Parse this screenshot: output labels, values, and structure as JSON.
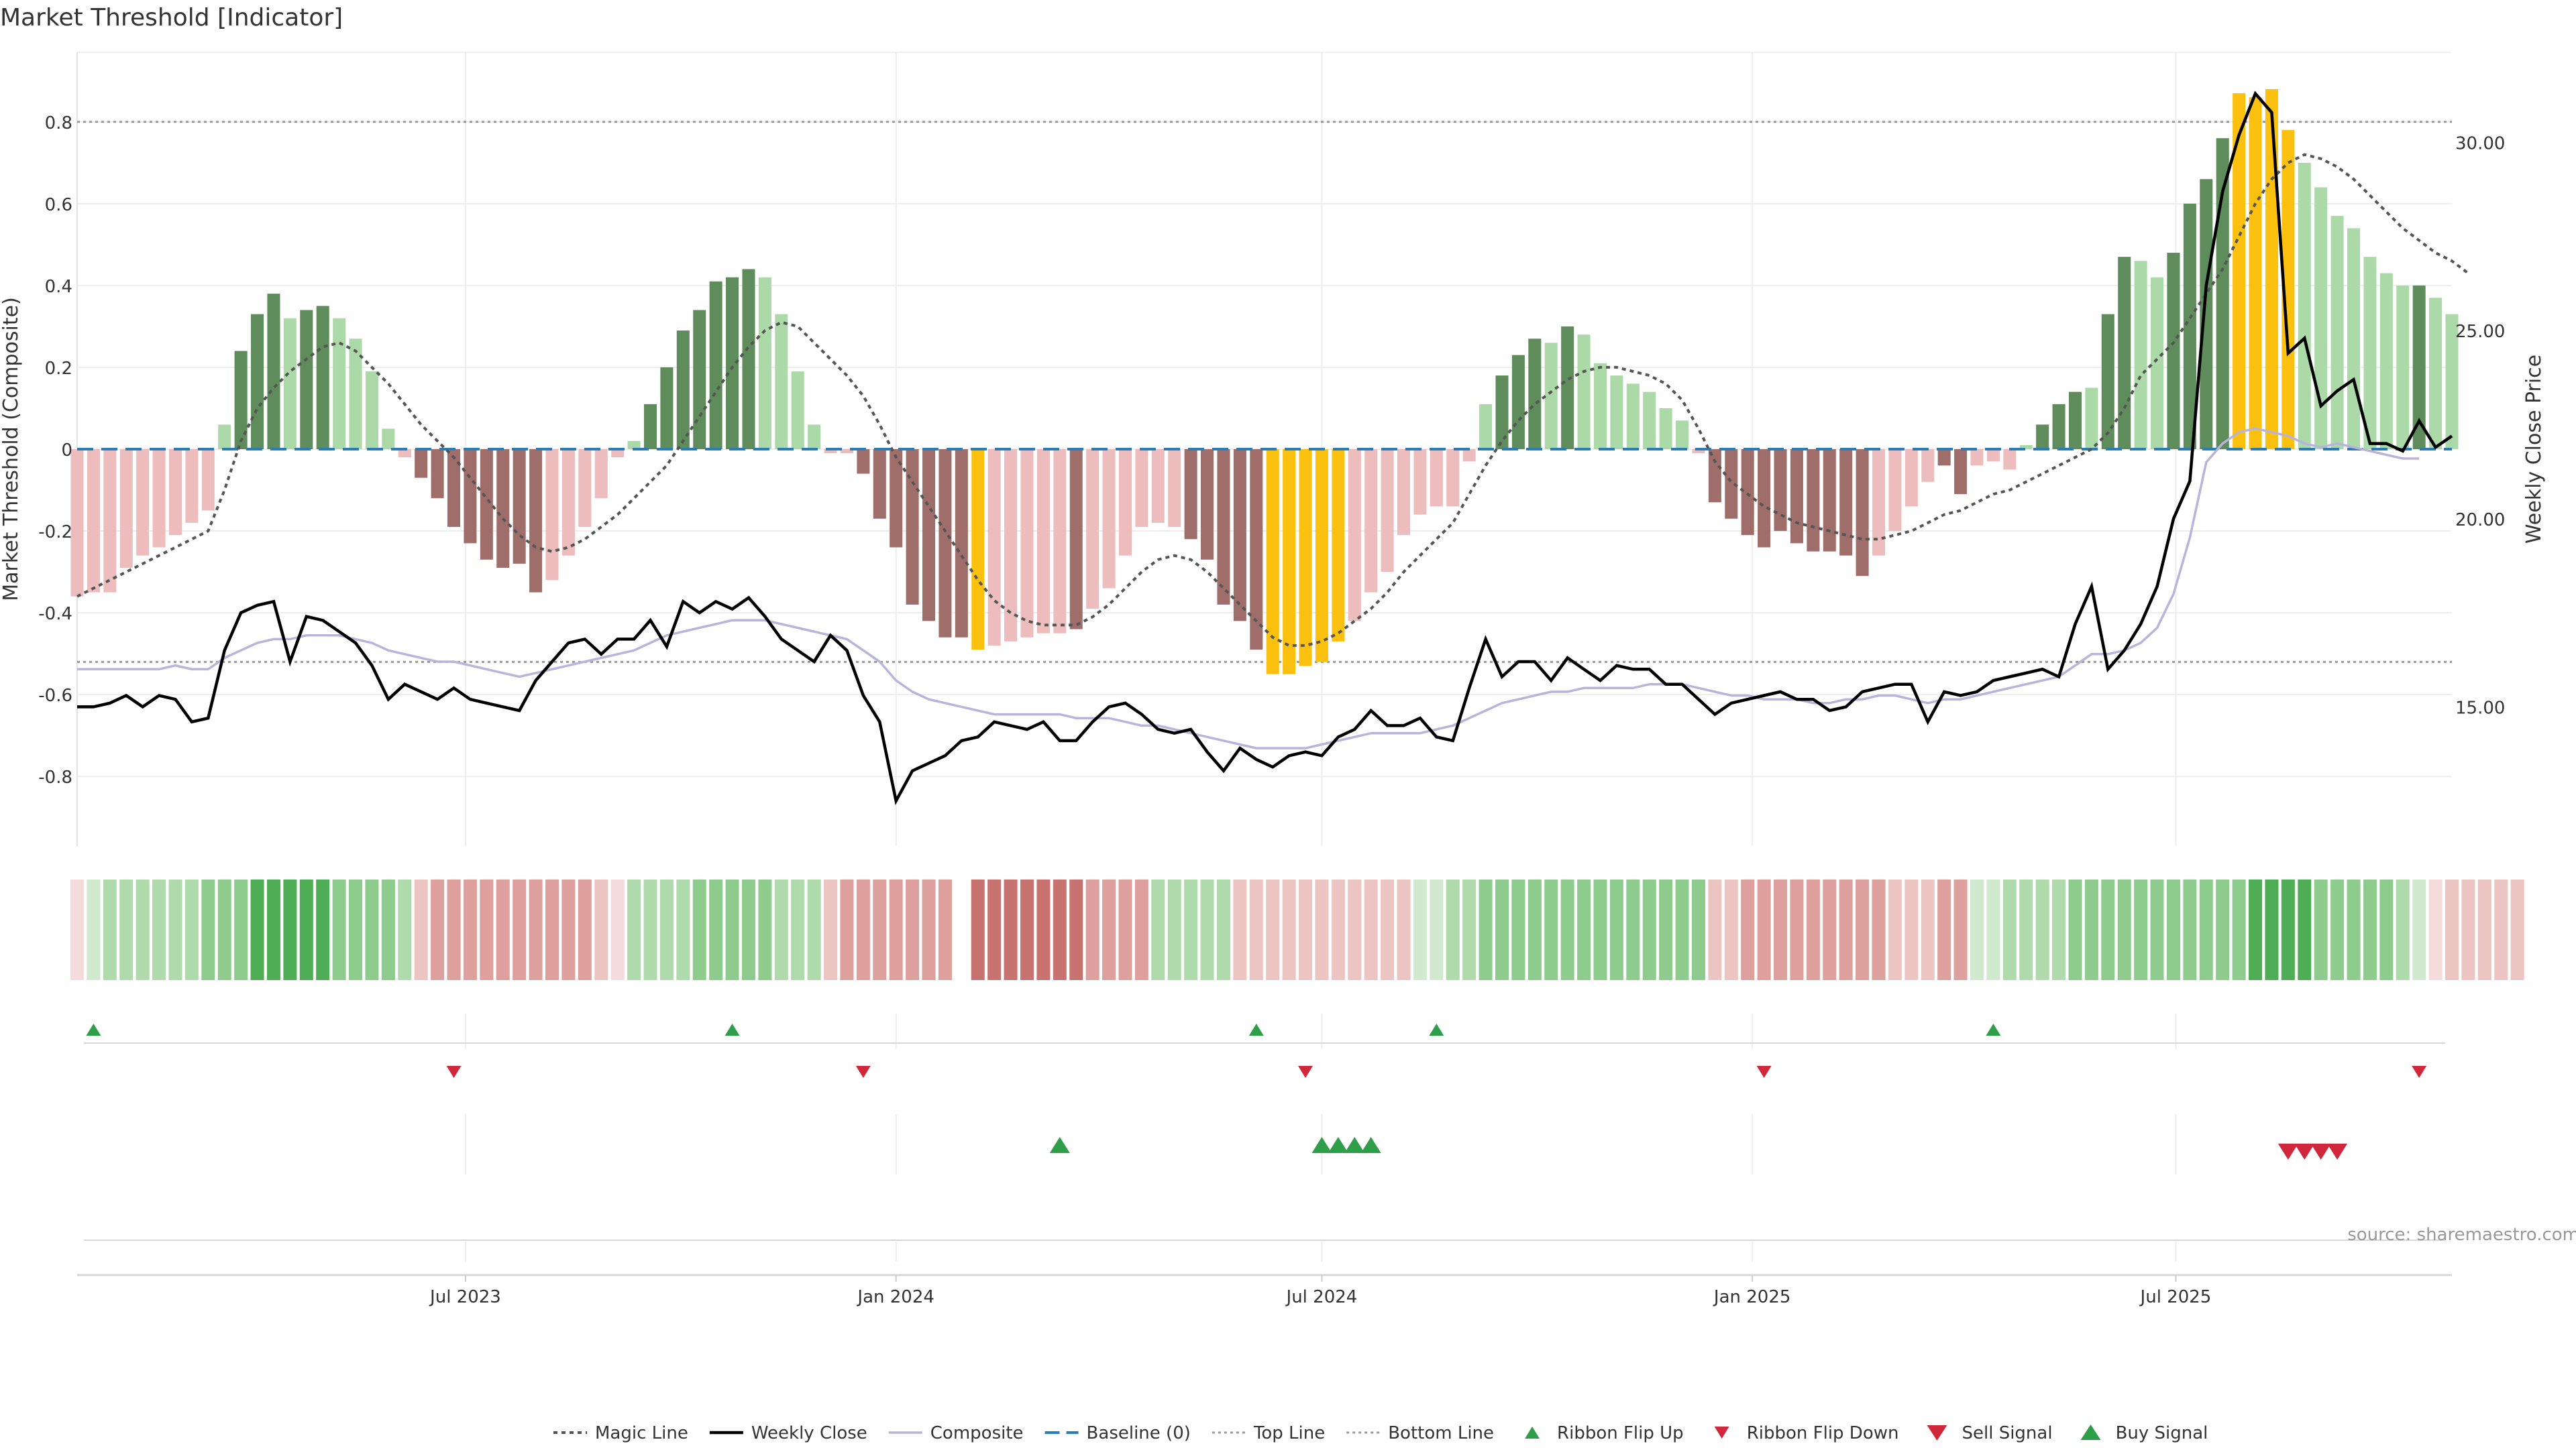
{
  "title": "Market Threshold [Indicator]",
  "source_note": "source: sharemaestro.com",
  "colors": {
    "strong_green": "#5e8c5a",
    "light_green": "#acd9a8",
    "strong_red": "#a06e6a",
    "light_red": "#ecbdbc",
    "extreme": "#fcc10f",
    "weekly_close": "#000000",
    "composite": "#b8b4dc",
    "magic": "#555555",
    "baseline": "#2a7db5",
    "ref_line": "#999999",
    "up_marker": "#2e9e48",
    "down_marker": "#d0283a"
  },
  "legend": [
    {
      "label": "Magic Line",
      "kind": "magic"
    },
    {
      "label": "Weekly Close",
      "kind": "close"
    },
    {
      "label": "Composite",
      "kind": "composite"
    },
    {
      "label": "Baseline (0)",
      "kind": "baseline"
    },
    {
      "label": "Top Line",
      "kind": "top"
    },
    {
      "label": "Bottom Line",
      "kind": "bottom"
    },
    {
      "label": "Ribbon Flip Up",
      "kind": "flip_up"
    },
    {
      "label": "Ribbon Flip Down",
      "kind": "flip_down"
    },
    {
      "label": "Sell Signal",
      "kind": "sell"
    },
    {
      "label": "Buy Signal",
      "kind": "buy"
    }
  ],
  "chart_data": {
    "type": "bar",
    "ylabel": "Market Threshold (Composite)",
    "y2label": "Weekly Close Price",
    "ylim": [
      -0.97,
      0.97
    ],
    "y2lim": [
      11.3,
      32.4
    ],
    "yticks": [
      "0.8",
      "0.6",
      "0.4",
      "0.2",
      "0",
      "-0.2",
      "-0.4",
      "-0.6",
      "-0.8"
    ],
    "y2ticks": [
      "30.00",
      "25.00",
      "20.00",
      "15.00"
    ],
    "top_line": 0.8,
    "bottom_line": -0.52,
    "baseline": 0,
    "grid": true,
    "legend_position": "bottom",
    "x_start": "2023-01-16",
    "x_end": "2025-10-27",
    "xticks": [
      {
        "date": "2023-07-01",
        "label": "Jul 2023"
      },
      {
        "date": "2024-01-01",
        "label": "Jan 2024"
      },
      {
        "date": "2024-07-01",
        "label": "Jul 2024"
      },
      {
        "date": "2025-01-01",
        "label": "Jan 2025"
      },
      {
        "date": "2025-07-01",
        "label": "Jul 2025"
      }
    ],
    "composite_bars": [
      -0.36,
      -0.35,
      -0.35,
      -0.29,
      -0.26,
      -0.24,
      -0.21,
      -0.18,
      -0.15,
      0.06,
      0.24,
      0.33,
      0.38,
      0.32,
      0.34,
      0.35,
      0.32,
      0.27,
      0.19,
      0.05,
      -0.02,
      -0.07,
      -0.12,
      -0.19,
      -0.23,
      -0.27,
      -0.29,
      -0.28,
      -0.35,
      -0.32,
      -0.26,
      -0.19,
      -0.12,
      -0.02,
      0.02,
      0.11,
      0.2,
      0.29,
      0.34,
      0.41,
      0.42,
      0.44,
      0.42,
      0.33,
      0.19,
      0.06,
      -0.01,
      -0.01,
      -0.06,
      -0.17,
      -0.24,
      -0.38,
      -0.42,
      -0.46,
      -0.46,
      -0.49,
      -0.48,
      -0.47,
      -0.46,
      -0.45,
      -0.45,
      -0.44,
      -0.39,
      -0.34,
      -0.26,
      -0.19,
      -0.18,
      -0.19,
      -0.22,
      -0.27,
      -0.38,
      -0.42,
      -0.49,
      -0.55,
      -0.55,
      -0.53,
      -0.52,
      -0.47,
      -0.42,
      -0.35,
      -0.3,
      -0.21,
      -0.16,
      -0.14,
      -0.14,
      -0.03,
      0.11,
      0.18,
      0.23,
      0.27,
      0.26,
      0.3,
      0.28,
      0.21,
      0.18,
      0.16,
      0.14,
      0.1,
      0.07,
      -0.01,
      -0.13,
      -0.17,
      -0.21,
      -0.24,
      -0.2,
      -0.23,
      -0.25,
      -0.25,
      -0.26,
      -0.31,
      -0.26,
      -0.2,
      -0.14,
      -0.08,
      -0.04,
      -0.11,
      -0.04,
      -0.03,
      -0.05,
      0.01,
      0.06,
      0.11,
      0.14,
      0.15,
      0.33,
      0.47,
      0.46,
      0.42,
      0.48,
      0.6,
      0.66,
      0.76,
      0.87,
      0.86,
      0.88,
      0.78,
      0.7,
      0.64,
      0.57,
      0.54,
      0.47,
      0.43,
      0.4,
      0.4,
      0.37,
      0.33
    ],
    "bar_tiers": [
      2,
      2,
      2,
      2,
      2,
      2,
      2,
      2,
      2,
      1,
      0,
      0,
      0,
      1,
      0,
      0,
      1,
      1,
      1,
      1,
      2,
      3,
      3,
      3,
      3,
      3,
      3,
      3,
      3,
      2,
      2,
      2,
      2,
      2,
      1,
      0,
      0,
      0,
      0,
      0,
      0,
      0,
      1,
      1,
      1,
      1,
      2,
      2,
      3,
      3,
      3,
      3,
      3,
      3,
      3,
      4,
      2,
      2,
      2,
      2,
      2,
      3,
      2,
      2,
      2,
      2,
      2,
      2,
      3,
      3,
      3,
      3,
      3,
      4,
      4,
      4,
      4,
      4,
      2,
      2,
      2,
      2,
      2,
      2,
      2,
      2,
      1,
      0,
      0,
      0,
      1,
      0,
      1,
      1,
      1,
      1,
      1,
      1,
      1,
      2,
      3,
      3,
      3,
      3,
      3,
      3,
      3,
      3,
      3,
      3,
      2,
      2,
      2,
      2,
      3,
      3,
      2,
      2,
      2,
      1,
      0,
      0,
      0,
      1,
      0,
      0,
      1,
      1,
      0,
      0,
      0,
      0,
      4,
      4,
      4,
      4,
      1,
      1,
      1,
      1,
      1,
      1,
      1,
      0,
      1,
      1
    ],
    "magic_line": [
      -0.36,
      -0.34,
      -0.32,
      -0.3,
      -0.28,
      -0.26,
      -0.24,
      -0.22,
      -0.2,
      -0.1,
      0.02,
      0.1,
      0.15,
      0.19,
      0.22,
      0.25,
      0.26,
      0.24,
      0.2,
      0.16,
      0.11,
      0.06,
      0.02,
      -0.02,
      -0.07,
      -0.12,
      -0.17,
      -0.21,
      -0.24,
      -0.25,
      -0.24,
      -0.22,
      -0.19,
      -0.16,
      -0.12,
      -0.08,
      -0.04,
      0.02,
      0.08,
      0.14,
      0.2,
      0.25,
      0.29,
      0.31,
      0.3,
      0.26,
      0.22,
      0.18,
      0.13,
      0.06,
      -0.02,
      -0.08,
      -0.14,
      -0.2,
      -0.26,
      -0.32,
      -0.37,
      -0.4,
      -0.42,
      -0.43,
      -0.43,
      -0.43,
      -0.41,
      -0.38,
      -0.34,
      -0.3,
      -0.27,
      -0.26,
      -0.27,
      -0.3,
      -0.34,
      -0.38,
      -0.42,
      -0.46,
      -0.48,
      -0.48,
      -0.47,
      -0.45,
      -0.42,
      -0.39,
      -0.35,
      -0.3,
      -0.26,
      -0.22,
      -0.18,
      -0.11,
      -0.04,
      0.02,
      0.07,
      0.11,
      0.14,
      0.17,
      0.19,
      0.2,
      0.2,
      0.19,
      0.18,
      0.16,
      0.12,
      0.05,
      -0.03,
      -0.08,
      -0.11,
      -0.14,
      -0.16,
      -0.18,
      -0.19,
      -0.2,
      -0.21,
      -0.22,
      -0.22,
      -0.21,
      -0.2,
      -0.18,
      -0.16,
      -0.15,
      -0.13,
      -0.11,
      -0.1,
      -0.08,
      -0.06,
      -0.04,
      -0.02,
      0.0,
      0.04,
      0.1,
      0.18,
      0.22,
      0.26,
      0.32,
      0.38,
      0.44,
      0.52,
      0.6,
      0.66,
      0.7,
      0.72,
      0.71,
      0.69,
      0.66,
      0.62,
      0.58,
      0.54,
      0.51,
      0.48,
      0.46,
      0.43
    ],
    "weekly_close": [
      15.0,
      15.0,
      15.1,
      15.3,
      15.0,
      15.3,
      15.2,
      14.6,
      14.7,
      16.5,
      17.5,
      17.7,
      17.8,
      16.2,
      17.4,
      17.3,
      17.0,
      16.7,
      16.1,
      15.2,
      15.6,
      15.4,
      15.2,
      15.5,
      15.2,
      15.1,
      15.0,
      14.9,
      15.7,
      16.2,
      16.7,
      16.8,
      16.4,
      16.8,
      16.8,
      17.3,
      16.6,
      17.8,
      17.5,
      17.8,
      17.6,
      17.9,
      17.4,
      16.8,
      16.5,
      16.2,
      16.9,
      16.5,
      15.3,
      14.6,
      12.5,
      13.3,
      13.5,
      13.7,
      14.1,
      14.2,
      14.6,
      14.5,
      14.4,
      14.6,
      14.1,
      14.1,
      14.6,
      15.0,
      15.1,
      14.8,
      14.4,
      14.3,
      14.4,
      13.8,
      13.3,
      13.9,
      13.6,
      13.4,
      13.7,
      13.8,
      13.7,
      14.2,
      14.4,
      14.9,
      14.5,
      14.5,
      14.7,
      14.2,
      14.1,
      15.5,
      16.8,
      15.8,
      16.2,
      16.2,
      15.7,
      16.3,
      16.0,
      15.7,
      16.1,
      16.0,
      16.0,
      15.6,
      15.6,
      15.2,
      14.8,
      15.1,
      15.2,
      15.3,
      15.4,
      15.2,
      15.2,
      14.9,
      15.0,
      15.4,
      15.5,
      15.6,
      15.6,
      14.6,
      15.4,
      15.3,
      15.4,
      15.7,
      15.8,
      15.9,
      16.0,
      15.8,
      17.2,
      18.2,
      16.0,
      16.5,
      17.2,
      18.2,
      20.0,
      21.0,
      26.2,
      28.7,
      30.2,
      31.3,
      30.8,
      24.4,
      24.8,
      23.0,
      23.4,
      23.7,
      22.0,
      22.0,
      21.8,
      22.6,
      21.9,
      22.2
    ],
    "composite_line": [
      16.0,
      16.0,
      16.0,
      16.0,
      16.0,
      16.0,
      16.1,
      16.0,
      16.0,
      16.3,
      16.5,
      16.7,
      16.8,
      16.8,
      16.9,
      16.9,
      16.9,
      16.8,
      16.7,
      16.5,
      16.4,
      16.3,
      16.2,
      16.2,
      16.1,
      16.0,
      15.9,
      15.8,
      15.9,
      16.0,
      16.1,
      16.2,
      16.3,
      16.4,
      16.5,
      16.7,
      16.9,
      17.0,
      17.1,
      17.2,
      17.3,
      17.3,
      17.3,
      17.2,
      17.1,
      17.0,
      16.9,
      16.8,
      16.5,
      16.2,
      15.7,
      15.4,
      15.2,
      15.1,
      15.0,
      14.9,
      14.8,
      14.8,
      14.8,
      14.8,
      14.8,
      14.7,
      14.7,
      14.7,
      14.6,
      14.5,
      14.5,
      14.4,
      14.3,
      14.2,
      14.1,
      14.0,
      13.9,
      13.9,
      13.9,
      13.9,
      14.0,
      14.1,
      14.2,
      14.3,
      14.3,
      14.3,
      14.3,
      14.4,
      14.5,
      14.7,
      14.9,
      15.1,
      15.2,
      15.3,
      15.4,
      15.4,
      15.5,
      15.5,
      15.5,
      15.5,
      15.6,
      15.6,
      15.6,
      15.5,
      15.4,
      15.3,
      15.3,
      15.2,
      15.2,
      15.2,
      15.1,
      15.1,
      15.2,
      15.2,
      15.3,
      15.3,
      15.2,
      15.1,
      15.2,
      15.2,
      15.3,
      15.4,
      15.5,
      15.6,
      15.7,
      15.8,
      16.1,
      16.4,
      16.4,
      16.5,
      16.7,
      17.1,
      18.0,
      19.5,
      21.5,
      22.0,
      22.3,
      22.4,
      22.3,
      22.2,
      22.0,
      21.9,
      22.0,
      21.9,
      21.8,
      21.7,
      21.6,
      21.6
    ],
    "ribbon_levels": [
      -1,
      1,
      2,
      2,
      2,
      2,
      2,
      2,
      3,
      3,
      3,
      4,
      4,
      4,
      4,
      4,
      3,
      3,
      3,
      3,
      2,
      -2,
      -3,
      -3,
      -3,
      -3,
      -3,
      -3,
      -3,
      -3,
      -3,
      -3,
      -2,
      -1,
      2,
      2,
      2,
      2,
      3,
      3,
      3,
      3,
      3,
      2,
      2,
      2,
      -2,
      -3,
      -3,
      -3,
      -3,
      -3,
      -3,
      -3,
      null,
      -4,
      -4,
      -4,
      -4,
      -4,
      -4,
      -4,
      -3,
      -3,
      -3,
      -3,
      2,
      2,
      2,
      2,
      2,
      -2,
      -2,
      -2,
      -2,
      -2,
      -2,
      -2,
      -2,
      -2,
      -2,
      -2,
      1,
      1,
      2,
      2,
      3,
      3,
      3,
      3,
      3,
      3,
      3,
      3,
      3,
      3,
      3,
      3,
      3,
      3,
      -2,
      -2,
      -3,
      -3,
      -3,
      -3,
      -3,
      -3,
      -3,
      -3,
      -3,
      -2,
      -2,
      -2,
      -3,
      -3,
      1,
      1,
      2,
      2,
      2,
      2,
      3,
      3,
      3,
      3,
      3,
      3,
      3,
      3,
      3,
      3,
      3,
      4,
      4,
      4,
      4,
      3,
      3,
      3,
      3,
      3,
      2,
      1,
      -1,
      -2,
      -2,
      -2,
      -2,
      -2
    ],
    "ribbon_flip_up": [
      "2023-01-23",
      "2023-10-23",
      "2024-06-03",
      "2024-08-19",
      "2025-04-14"
    ],
    "ribbon_flip_down": [
      "2023-06-26",
      "2023-12-18",
      "2024-06-24",
      "2025-01-06",
      "2025-10-13"
    ],
    "buy_signals": [
      "2024-03-11",
      "2024-07-01",
      "2024-07-08",
      "2024-07-15",
      "2024-07-22"
    ],
    "sell_signals": [
      "2025-08-18",
      "2025-08-25",
      "2025-09-01",
      "2025-09-08"
    ]
  }
}
